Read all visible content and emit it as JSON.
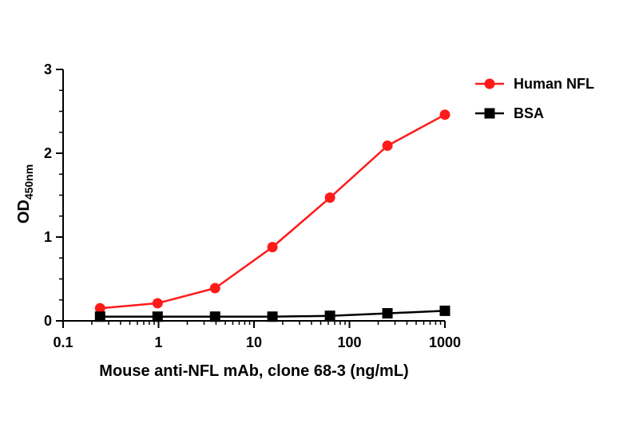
{
  "chart_data": {
    "type": "line",
    "xscale": "log",
    "xlabel": "Mouse anti-NFL mAb, clone 68-3 (ng/mL)",
    "ylabel_main": "OD",
    "ylabel_sub": "450nm",
    "xlim": [
      0.1,
      1000
    ],
    "ylim": [
      0,
      3
    ],
    "xticks": [
      "0.1",
      "1",
      "10",
      "100",
      "1000"
    ],
    "yticks": [
      "0",
      "1",
      "2",
      "3"
    ],
    "grid": false,
    "legend_position": "top-right",
    "series": [
      {
        "name": "Human NFL",
        "color": "#ff1a1a",
        "marker": "circle",
        "x": [
          0.244,
          0.977,
          3.91,
          15.6,
          62.5,
          250,
          1000
        ],
        "y": [
          0.15,
          0.21,
          0.39,
          0.88,
          1.47,
          2.09,
          2.46
        ]
      },
      {
        "name": "BSA",
        "color": "#000000",
        "marker": "square",
        "x": [
          0.244,
          0.977,
          3.91,
          15.6,
          62.5,
          250,
          1000
        ],
        "y": [
          0.05,
          0.05,
          0.05,
          0.05,
          0.06,
          0.09,
          0.12
        ]
      }
    ]
  }
}
